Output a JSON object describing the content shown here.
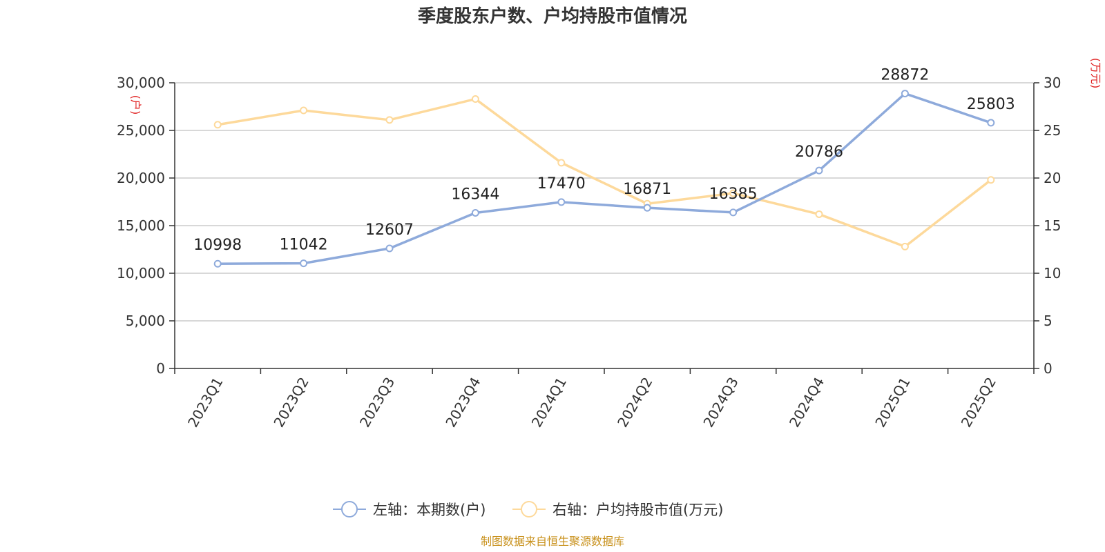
{
  "title": "季度股东户数、户均持股市值情况",
  "left_unit": "(户)",
  "right_unit": "(万元)",
  "source": "制图数据来自恒生聚源数据库",
  "colors": {
    "left_series": "#8eaadb",
    "right_series": "#fdd99b",
    "unit": "#e02020",
    "source": "#c8901a"
  },
  "chart_data": {
    "type": "line",
    "categories": [
      "2023Q1",
      "2023Q2",
      "2023Q3",
      "2023Q4",
      "2024Q1",
      "2024Q2",
      "2024Q3",
      "2024Q4",
      "2025Q1",
      "2025Q2"
    ],
    "left_axis": {
      "min": 0,
      "max": 30000,
      "ticks": [
        "0",
        "5,000",
        "10,000",
        "15,000",
        "20,000",
        "25,000",
        "30,000"
      ],
      "unit": "(户)"
    },
    "right_axis": {
      "min": 0,
      "max": 30,
      "ticks": [
        "0",
        "5",
        "10",
        "15",
        "20",
        "25",
        "30"
      ],
      "unit": "(万元)"
    },
    "series": [
      {
        "name": "左轴：本期数(户)",
        "axis": "left",
        "color": "#8eaadb",
        "values": [
          10998,
          11042,
          12607,
          16344,
          17470,
          16871,
          16385,
          20786,
          28872,
          25803
        ],
        "labels": [
          "10998",
          "11042",
          "12607",
          "16344",
          "17470",
          "16871",
          "16385",
          "20786",
          "28872",
          "25803"
        ]
      },
      {
        "name": "右轴：户均持股市值(万元)",
        "axis": "right",
        "color": "#fdd99b",
        "values": [
          25.6,
          27.1,
          26.1,
          28.3,
          21.6,
          17.3,
          18.4,
          16.2,
          12.8,
          19.8
        ]
      }
    ],
    "grid": true,
    "legend_position": "bottom"
  }
}
